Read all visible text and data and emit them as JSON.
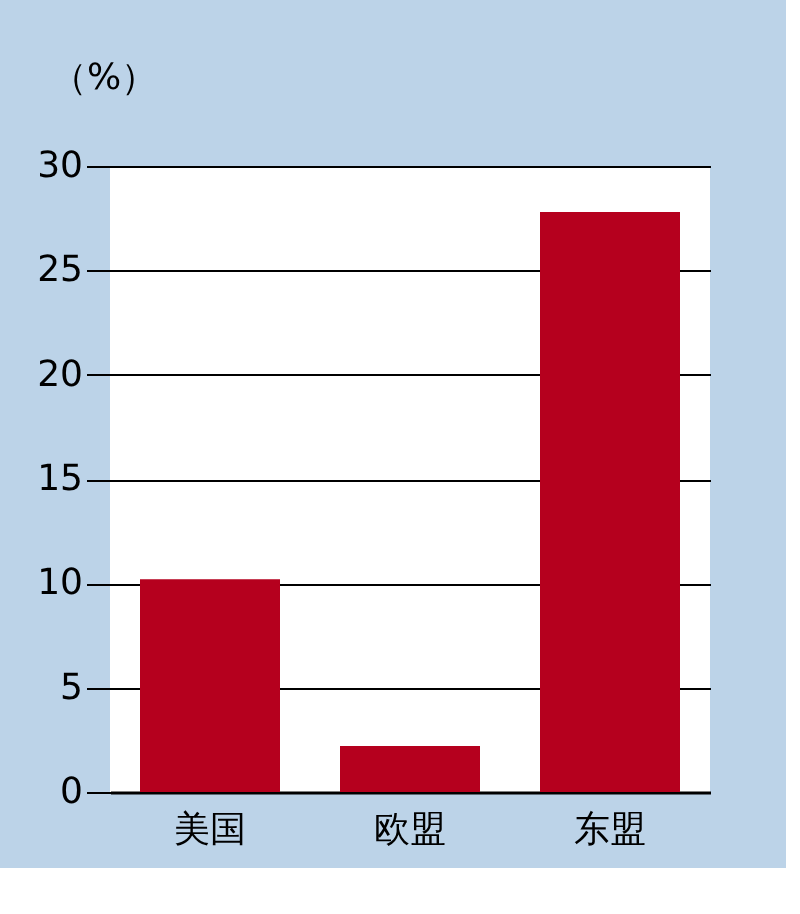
{
  "chart_data": {
    "type": "bar",
    "ylabel": "（%）",
    "categories": [
      "美国",
      "欧盟",
      "东盟"
    ],
    "values": [
      10.2,
      2.2,
      27.8
    ],
    "color": "#b5001e",
    "ylim": [
      0,
      30
    ],
    "yticks": [
      0,
      5,
      10,
      15,
      20,
      25,
      30
    ],
    "grid": "y"
  }
}
